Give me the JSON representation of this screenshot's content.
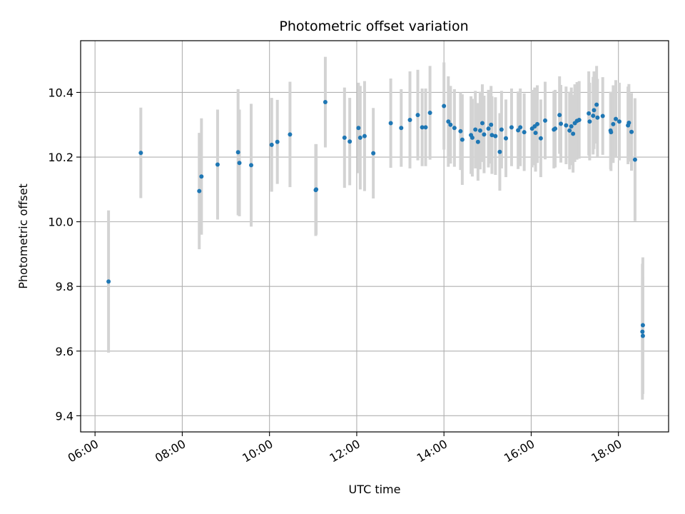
{
  "chart_data": {
    "type": "scatter",
    "title": "Photometric offset variation",
    "xlabel": "UTC time",
    "ylabel": "Photometric offset",
    "x_unit": "hours UTC",
    "xlim": [
      5.67,
      19.15
    ],
    "ylim": [
      9.35,
      10.56
    ],
    "x_ticks": [
      {
        "value": 6,
        "label": "06:00"
      },
      {
        "value": 8,
        "label": "08:00"
      },
      {
        "value": 10,
        "label": "10:00"
      },
      {
        "value": 12,
        "label": "12:00"
      },
      {
        "value": 14,
        "label": "14:00"
      },
      {
        "value": 16,
        "label": "16:00"
      },
      {
        "value": 18,
        "label": "18:00"
      }
    ],
    "y_ticks": [
      {
        "value": 9.4,
        "label": "9.4"
      },
      {
        "value": 9.6,
        "label": "9.6"
      },
      {
        "value": 9.8,
        "label": "9.8"
      },
      {
        "value": 10.0,
        "label": "10.0"
      },
      {
        "value": 10.2,
        "label": "10.2"
      },
      {
        "value": 10.4,
        "label": "10.4"
      }
    ],
    "grid": true,
    "x_tick_rotation": "30deg",
    "colors": {
      "point": "#1f77b4",
      "errorbar": "#d3d3d3",
      "grid": "#b0b0b0"
    },
    "points": [
      [
        6.31,
        9.815,
        0.22
      ],
      [
        7.05,
        10.213,
        0.14
      ],
      [
        8.39,
        10.095,
        0.18
      ],
      [
        8.44,
        10.14,
        0.18
      ],
      [
        8.81,
        10.177,
        0.17
      ],
      [
        9.28,
        10.215,
        0.195
      ],
      [
        9.31,
        10.182,
        0.165
      ],
      [
        9.58,
        10.175,
        0.19
      ],
      [
        10.05,
        10.238,
        0.145
      ],
      [
        10.18,
        10.247,
        0.13
      ],
      [
        10.47,
        10.27,
        0.163
      ],
      [
        11.06,
        10.098,
        0.142
      ],
      [
        11.07,
        10.1,
        0.14
      ],
      [
        11.28,
        10.37,
        0.14
      ],
      [
        11.72,
        10.26,
        0.155
      ],
      [
        11.84,
        10.248,
        0.135
      ],
      [
        12.04,
        10.29,
        0.14
      ],
      [
        12.08,
        10.26,
        0.16
      ],
      [
        12.18,
        10.265,
        0.17
      ],
      [
        12.38,
        10.212,
        0.14
      ],
      [
        12.78,
        10.305,
        0.138
      ],
      [
        13.02,
        10.29,
        0.12
      ],
      [
        13.22,
        10.315,
        0.15
      ],
      [
        13.4,
        10.33,
        0.14
      ],
      [
        13.5,
        10.292,
        0.12
      ],
      [
        13.58,
        10.292,
        0.12
      ],
      [
        13.68,
        10.337,
        0.145
      ],
      [
        14.0,
        10.358,
        0.135
      ],
      [
        14.1,
        10.31,
        0.14
      ],
      [
        14.15,
        10.3,
        0.12
      ],
      [
        14.24,
        10.29,
        0.12
      ],
      [
        14.38,
        10.28,
        0.12
      ],
      [
        14.42,
        10.254,
        0.14
      ],
      [
        14.62,
        10.268,
        0.12
      ],
      [
        14.65,
        10.26,
        0.12
      ],
      [
        14.72,
        10.285,
        0.12
      ],
      [
        14.78,
        10.247,
        0.12
      ],
      [
        14.83,
        10.282,
        0.12
      ],
      [
        14.88,
        10.305,
        0.12
      ],
      [
        14.92,
        10.27,
        0.12
      ],
      [
        15.02,
        10.288,
        0.12
      ],
      [
        15.08,
        10.3,
        0.12
      ],
      [
        15.1,
        10.268,
        0.12
      ],
      [
        15.18,
        10.265,
        0.12
      ],
      [
        15.28,
        10.216,
        0.12
      ],
      [
        15.32,
        10.285,
        0.12
      ],
      [
        15.42,
        10.258,
        0.12
      ],
      [
        15.55,
        10.292,
        0.12
      ],
      [
        15.7,
        10.283,
        0.12
      ],
      [
        15.75,
        10.292,
        0.12
      ],
      [
        15.84,
        10.277,
        0.12
      ],
      [
        16.02,
        10.288,
        0.12
      ],
      [
        16.08,
        10.295,
        0.12
      ],
      [
        16.1,
        10.275,
        0.12
      ],
      [
        16.14,
        10.302,
        0.12
      ],
      [
        16.22,
        10.258,
        0.12
      ],
      [
        16.32,
        10.313,
        0.12
      ],
      [
        16.52,
        10.285,
        0.12
      ],
      [
        16.55,
        10.288,
        0.12
      ],
      [
        16.65,
        10.33,
        0.12
      ],
      [
        16.68,
        10.303,
        0.12
      ],
      [
        16.8,
        10.298,
        0.12
      ],
      [
        16.88,
        10.282,
        0.12
      ],
      [
        16.92,
        10.295,
        0.12
      ],
      [
        16.96,
        10.272,
        0.12
      ],
      [
        17.0,
        10.305,
        0.12
      ],
      [
        17.05,
        10.312,
        0.12
      ],
      [
        17.1,
        10.315,
        0.12
      ],
      [
        17.32,
        10.335,
        0.13
      ],
      [
        17.34,
        10.31,
        0.12
      ],
      [
        17.42,
        10.328,
        0.12
      ],
      [
        17.44,
        10.345,
        0.12
      ],
      [
        17.5,
        10.362,
        0.12
      ],
      [
        17.52,
        10.322,
        0.12
      ],
      [
        17.64,
        10.327,
        0.12
      ],
      [
        17.82,
        10.282,
        0.12
      ],
      [
        17.83,
        10.277,
        0.12
      ],
      [
        17.88,
        10.302,
        0.12
      ],
      [
        17.94,
        10.318,
        0.12
      ],
      [
        18.02,
        10.31,
        0.12
      ],
      [
        18.22,
        10.298,
        0.12
      ],
      [
        18.24,
        10.306,
        0.12
      ],
      [
        18.3,
        10.278,
        0.12
      ],
      [
        18.38,
        10.192,
        0.19
      ],
      [
        18.56,
        9.68,
        0.21
      ],
      [
        18.55,
        9.66,
        0.21
      ],
      [
        18.56,
        9.647,
        0.18
      ]
    ]
  }
}
